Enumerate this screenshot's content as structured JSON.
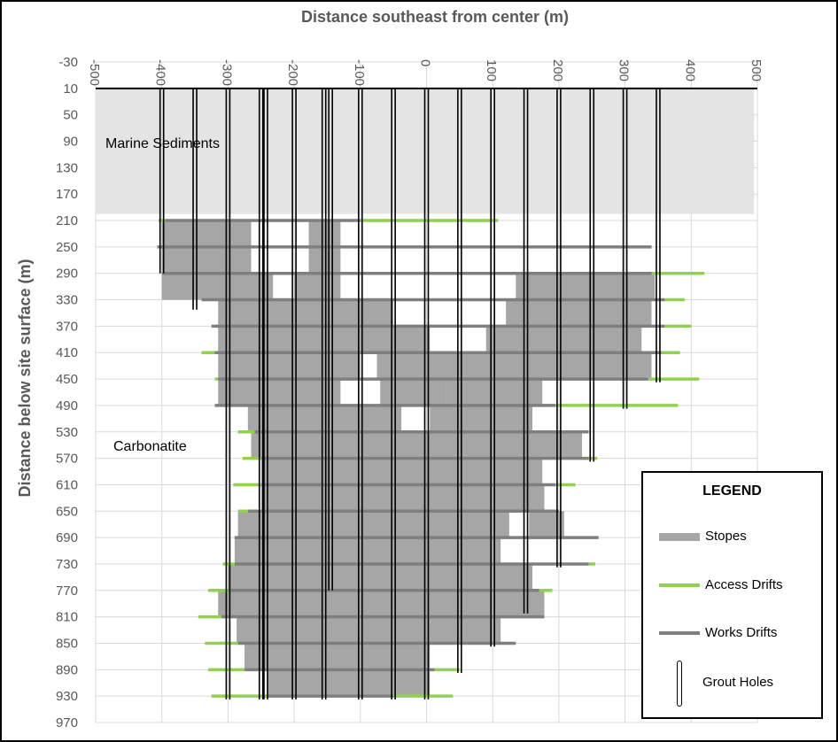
{
  "chart_data": {
    "type": "bar",
    "title": "",
    "xlabel": "Distance southeast from center (m)",
    "ylabel": "Distance below site surface (m)",
    "xlim": [
      -500,
      500
    ],
    "ylim": [
      -30,
      970
    ],
    "x_ticks": [
      -500,
      -400,
      -300,
      -200,
      -100,
      0,
      100,
      200,
      300,
      400,
      500
    ],
    "y_ticks": [
      -30,
      10,
      50,
      90,
      130,
      170,
      210,
      250,
      290,
      330,
      370,
      410,
      450,
      490,
      530,
      570,
      610,
      650,
      690,
      730,
      770,
      810,
      850,
      890,
      930,
      970
    ],
    "grid": true,
    "zones": [
      {
        "label": "Marine Sediments",
        "x": -505,
        "y": 0
      },
      {
        "label": "Carbonatite",
        "x": -465,
        "y": 522
      }
    ],
    "sediment_fill": {
      "x_from": -500,
      "x_to": 495,
      "depth_from": 10,
      "depth_to": 200
    },
    "surface_line": {
      "x_from": -500,
      "x_to": 500,
      "depth": 10
    },
    "stopes": [
      {
        "depth_top": 210,
        "depth_bottom": 290,
        "x_from": -400,
        "x_to": -265
      },
      {
        "depth_top": 210,
        "depth_bottom": 290,
        "x_from": -178,
        "x_to": -130
      },
      {
        "depth_top": 290,
        "depth_bottom": 330,
        "x_from": -400,
        "x_to": -330
      },
      {
        "depth_top": 290,
        "depth_bottom": 330,
        "x_from": -330,
        "x_to": -232
      },
      {
        "depth_top": 290,
        "depth_bottom": 330,
        "x_from": -200,
        "x_to": -130
      },
      {
        "depth_top": 290,
        "depth_bottom": 330,
        "x_from": 135,
        "x_to": 345
      },
      {
        "depth_top": 330,
        "depth_bottom": 370,
        "x_from": -315,
        "x_to": -50
      },
      {
        "depth_top": 330,
        "depth_bottom": 370,
        "x_from": 120,
        "x_to": 340
      },
      {
        "depth_top": 370,
        "depth_bottom": 410,
        "x_from": -315,
        "x_to": 5
      },
      {
        "depth_top": 370,
        "depth_bottom": 410,
        "x_from": 90,
        "x_to": 325
      },
      {
        "depth_top": 410,
        "depth_bottom": 450,
        "x_from": -315,
        "x_to": -100
      },
      {
        "depth_top": 410,
        "depth_bottom": 450,
        "x_from": -75,
        "x_to": 340
      },
      {
        "depth_top": 450,
        "depth_bottom": 490,
        "x_from": -315,
        "x_to": -130
      },
      {
        "depth_top": 450,
        "depth_bottom": 490,
        "x_from": -70,
        "x_to": 30
      },
      {
        "depth_top": 450,
        "depth_bottom": 490,
        "x_from": 30,
        "x_to": 175
      },
      {
        "depth_top": 490,
        "depth_bottom": 530,
        "x_from": -270,
        "x_to": -38
      },
      {
        "depth_top": 490,
        "depth_bottom": 530,
        "x_from": 5,
        "x_to": 160
      },
      {
        "depth_top": 530,
        "depth_bottom": 570,
        "x_from": -265,
        "x_to": 235
      },
      {
        "depth_top": 570,
        "depth_bottom": 610,
        "x_from": -250,
        "x_to": 175
      },
      {
        "depth_top": 610,
        "depth_bottom": 650,
        "x_from": -250,
        "x_to": 178
      },
      {
        "depth_top": 650,
        "depth_bottom": 690,
        "x_from": -285,
        "x_to": 125
      },
      {
        "depth_top": 650,
        "depth_bottom": 690,
        "x_from": 155,
        "x_to": 208
      },
      {
        "depth_top": 690,
        "depth_bottom": 730,
        "x_from": -290,
        "x_to": 112
      },
      {
        "depth_top": 730,
        "depth_bottom": 770,
        "x_from": -300,
        "x_to": 160
      },
      {
        "depth_top": 770,
        "depth_bottom": 810,
        "x_from": -315,
        "x_to": 178
      },
      {
        "depth_top": 810,
        "depth_bottom": 850,
        "x_from": -287,
        "x_to": 112
      },
      {
        "depth_top": 850,
        "depth_bottom": 890,
        "x_from": -275,
        "x_to": 5
      },
      {
        "depth_top": 890,
        "depth_bottom": 930,
        "x_from": -240,
        "x_to": -45
      },
      {
        "depth_top": 890,
        "depth_bottom": 930,
        "x_from": -45,
        "x_to": 5
      }
    ],
    "works_drifts": [
      {
        "depth": 210,
        "x_from": -395,
        "x_to": -100
      },
      {
        "depth": 250,
        "x_from": -407,
        "x_to": 340
      },
      {
        "depth": 290,
        "x_from": -400,
        "x_to": 340
      },
      {
        "depth": 330,
        "x_from": -340,
        "x_to": 360
      },
      {
        "depth": 370,
        "x_from": -325,
        "x_to": 360
      },
      {
        "depth": 410,
        "x_from": -320,
        "x_to": 355
      },
      {
        "depth": 450,
        "x_from": -315,
        "x_to": 335
      },
      {
        "depth": 490,
        "x_from": -320,
        "x_to": 195
      },
      {
        "depth": 530,
        "x_from": -260,
        "x_to": 245
      },
      {
        "depth": 570,
        "x_from": -250,
        "x_to": 245
      },
      {
        "depth": 610,
        "x_from": -250,
        "x_to": 195
      },
      {
        "depth": 650,
        "x_from": -270,
        "x_to": 200
      },
      {
        "depth": 690,
        "x_from": -290,
        "x_to": 260
      },
      {
        "depth": 730,
        "x_from": -290,
        "x_to": 245
      },
      {
        "depth": 770,
        "x_from": -300,
        "x_to": 170
      },
      {
        "depth": 810,
        "x_from": -310,
        "x_to": 178
      },
      {
        "depth": 850,
        "x_from": -285,
        "x_to": 135
      },
      {
        "depth": 890,
        "x_from": -275,
        "x_to": 12
      },
      {
        "depth": 930,
        "x_from": -240,
        "x_to": -50
      }
    ],
    "access_drifts": [
      {
        "depth": 210,
        "x_from": -405,
        "x_to": -395
      },
      {
        "depth": 210,
        "x_from": -100,
        "x_to": 108
      },
      {
        "depth": 290,
        "x_from": 340,
        "x_to": 420
      },
      {
        "depth": 330,
        "x_from": 360,
        "x_to": 390
      },
      {
        "depth": 370,
        "x_from": 360,
        "x_to": 400
      },
      {
        "depth": 410,
        "x_from": -340,
        "x_to": -320
      },
      {
        "depth": 410,
        "x_from": 355,
        "x_to": 383
      },
      {
        "depth": 450,
        "x_from": -320,
        "x_to": -315
      },
      {
        "depth": 450,
        "x_from": 335,
        "x_to": 412
      },
      {
        "depth": 490,
        "x_from": 195,
        "x_to": 380
      },
      {
        "depth": 530,
        "x_from": -285,
        "x_to": -260
      },
      {
        "depth": 570,
        "x_from": -278,
        "x_to": -250
      },
      {
        "depth": 570,
        "x_from": 245,
        "x_to": 258
      },
      {
        "depth": 610,
        "x_from": -292,
        "x_to": -250
      },
      {
        "depth": 610,
        "x_from": 195,
        "x_to": 225
      },
      {
        "depth": 650,
        "x_from": -285,
        "x_to": -270
      },
      {
        "depth": 730,
        "x_from": -308,
        "x_to": -290
      },
      {
        "depth": 730,
        "x_from": 245,
        "x_to": 255
      },
      {
        "depth": 770,
        "x_from": -330,
        "x_to": -300
      },
      {
        "depth": 770,
        "x_from": 170,
        "x_to": 190
      },
      {
        "depth": 810,
        "x_from": -345,
        "x_to": -310
      },
      {
        "depth": 850,
        "x_from": -335,
        "x_to": -285
      },
      {
        "depth": 890,
        "x_from": -330,
        "x_to": -275
      },
      {
        "depth": 890,
        "x_from": 12,
        "x_to": 50
      },
      {
        "depth": 930,
        "x_from": -325,
        "x_to": -240
      },
      {
        "depth": 930,
        "x_from": -50,
        "x_to": 40
      }
    ],
    "grout_holes": [
      {
        "x": -400,
        "depth_from": 10,
        "depth_to": 290
      },
      {
        "x": -350,
        "depth_from": 10,
        "depth_to": 345
      },
      {
        "x": -300,
        "depth_from": 10,
        "depth_to": 935
      },
      {
        "x": -250,
        "depth_from": 10,
        "depth_to": 935
      },
      {
        "x": -243,
        "depth_from": 10,
        "depth_to": 935
      },
      {
        "x": -200,
        "depth_from": 10,
        "depth_to": 935
      },
      {
        "x": -155,
        "depth_from": 10,
        "depth_to": 935
      },
      {
        "x": -145,
        "depth_from": 10,
        "depth_to": 770
      },
      {
        "x": -100,
        "depth_from": 10,
        "depth_to": 935
      },
      {
        "x": -50,
        "depth_from": 10,
        "depth_to": 935
      },
      {
        "x": 0,
        "depth_from": 10,
        "depth_to": 935
      },
      {
        "x": 50,
        "depth_from": 10,
        "depth_to": 895
      },
      {
        "x": 100,
        "depth_from": 10,
        "depth_to": 855
      },
      {
        "x": 150,
        "depth_from": 10,
        "depth_to": 805
      },
      {
        "x": 200,
        "depth_from": 10,
        "depth_to": 735
      },
      {
        "x": 250,
        "depth_from": 10,
        "depth_to": 575
      },
      {
        "x": 300,
        "depth_from": 10,
        "depth_to": 495
      },
      {
        "x": 350,
        "depth_from": 10,
        "depth_to": 455
      }
    ],
    "colors": {
      "sediments": "#e4e4e4",
      "stopes": "#a6a6a6",
      "works_drifts": "#7f7f7f",
      "access_drifts": "#92d050",
      "grout_holes": "#000000",
      "grid": "#d9d9d9",
      "axis_text": "#595959"
    },
    "legend": {
      "title": "LEGEND",
      "items": [
        {
          "label": "Stopes",
          "symbol": "stope-swatch"
        },
        {
          "label": "Access Drifts",
          "symbol": "access-line"
        },
        {
          "label": "Works Drifts",
          "symbol": "works-line"
        },
        {
          "label": "Grout Holes",
          "symbol": "grout-hole"
        }
      ]
    }
  }
}
